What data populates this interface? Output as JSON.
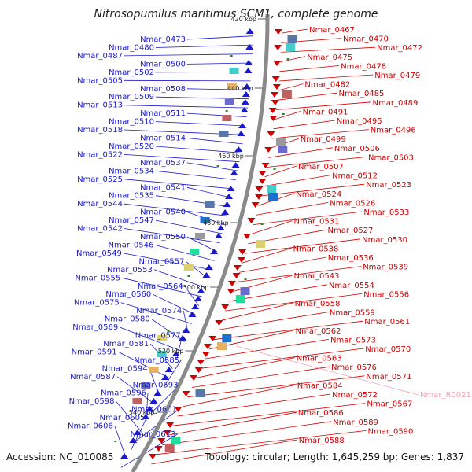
{
  "title": "Nitrosopumilus maritimus SCM1, complete genome",
  "accession": "Accession: NC_010085",
  "summary": "Topology: circular; Length: 1,645,259 bp; Genes: 1,837",
  "colors": {
    "forward_genes": "#1a1acc",
    "reverse_genes": "#d00000",
    "rna_genes": "#f0a0b0",
    "backbone": "#8a8a8a",
    "kbp_marker": "#228822"
  },
  "scale_ticks": [
    "420 kbp",
    "440 kbp",
    "460 kbp",
    "480 kbp",
    "500 kbp",
    "520 kbp",
    "540 kbp"
  ],
  "forward_labels": [
    "Nmar_0473",
    "Nmar_0480",
    "Nmar_0487",
    "Nmar_0500",
    "Nmar_0502",
    "Nmar_0505",
    "Nmar_0508",
    "Nmar_0509",
    "Nmar_0513",
    "Nmar_0511",
    "Nmar_0510",
    "Nmar_0518",
    "Nmar_0514",
    "Nmar_0520",
    "Nmar_0522",
    "Nmar_0537",
    "Nmar_0534",
    "Nmar_0525",
    "Nmar_0541",
    "Nmar_0535",
    "Nmar_0544",
    "Nmar_0540",
    "Nmar_0547",
    "Nmar_0542",
    "Nmar_0550",
    "Nmar_0546",
    "Nmar_0549",
    "Nmar_0557",
    "Nmar_0553",
    "Nmar_0555",
    "Nmar_0564",
    "Nmar_0560",
    "Nmar_0575",
    "Nmar_0574",
    "Nmar_0580",
    "Nmar_0569",
    "Nmar_0577",
    "Nmar_0581",
    "Nmar_0591",
    "Nmar_0585",
    "Nmar_0594",
    "Nmar_0587",
    "Nmar_0593",
    "Nmar_0596",
    "Nmar_0598",
    "Nmar_0601",
    "Nmar_0605",
    "Nmar_0606",
    "Nmar_0613"
  ],
  "reverse_labels": [
    "Nmar_0467",
    "Nmar_0470",
    "Nmar_0472",
    "Nmar_0475",
    "Nmar_0478",
    "Nmar_0479",
    "Nmar_0482",
    "Nmar_0485",
    "Nmar_0489",
    "Nmar_0491",
    "Nmar_0495",
    "Nmar_0496",
    "Nmar_0499",
    "Nmar_0506",
    "Nmar_0503",
    "Nmar_0507",
    "Nmar_0512",
    "Nmar_0523",
    "Nmar_0524",
    "Nmar_0526",
    "Nmar_0533",
    "Nmar_0531",
    "Nmar_0527",
    "Nmar_0530",
    "Nmar_0538",
    "Nmar_0536",
    "Nmar_0539",
    "Nmar_0543",
    "Nmar_0554",
    "Nmar_0556",
    "Nmar_0558",
    "Nmar_0559",
    "Nmar_0561",
    "Nmar_0562",
    "Nmar_0573",
    "Nmar_0570",
    "Nmar_0563",
    "Nmar_0576",
    "Nmar_0571",
    "Nmar_0584",
    "Nmar_0572",
    "Nmar_0567",
    "Nmar_0586",
    "Nmar_0589",
    "Nmar_0590",
    "Nmar_0588"
  ],
  "rna_labels": [
    "Nmar_R0021"
  ]
}
